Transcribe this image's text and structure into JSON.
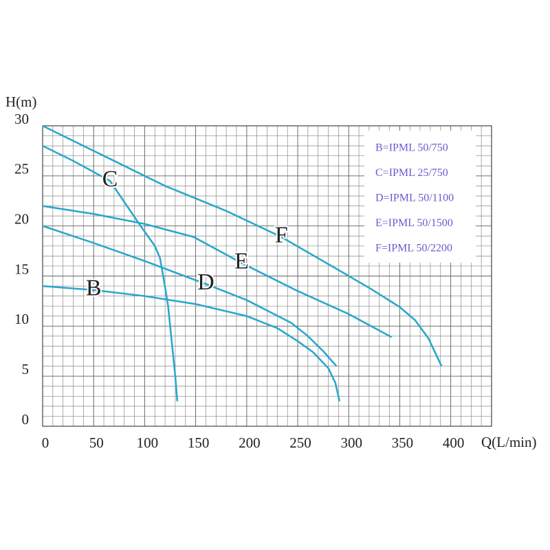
{
  "chart_data": {
    "type": "line",
    "y_label": "H(m)",
    "x_label": "Q(L/min)",
    "xlim": [
      0,
      440
    ],
    "xticks": [
      0,
      50,
      100,
      150,
      200,
      250,
      300,
      350,
      400
    ],
    "ylim": [
      0,
      30
    ],
    "yticks": [
      0,
      5,
      10,
      15,
      20,
      25,
      30
    ],
    "grid": true,
    "legend": [
      "B=IPML 50/750",
      "C=IPML 25/750",
      "D=IPML 50/1100",
      "E=IPML 50/1500",
      "F=IPML 50/2200"
    ],
    "legend_color": "#6a5acd",
    "series": [
      {
        "name": "B",
        "color": "#2aa8cc",
        "x": [
          0,
          50,
          100,
          150,
          200,
          230,
          250,
          265,
          280,
          287,
          291
        ],
        "values": [
          14,
          13.6,
          13,
          12.2,
          11,
          9.8,
          8.5,
          7.4,
          5.8,
          4.3,
          2.5
        ]
      },
      {
        "name": "C",
        "color": "#2aa8cc",
        "x": [
          0,
          30,
          66,
          96,
          110,
          115,
          119,
          123,
          127,
          130,
          132
        ],
        "values": [
          28,
          26.5,
          24.5,
          20,
          18,
          16.8,
          14.5,
          12,
          8,
          5,
          2.5
        ]
      },
      {
        "name": "D",
        "color": "#2aa8cc",
        "x": [
          0,
          50,
          100,
          160,
          200,
          244,
          260,
          275,
          288
        ],
        "values": [
          20,
          18.3,
          16.5,
          14.2,
          12.6,
          10.3,
          9,
          7.5,
          6
        ]
      },
      {
        "name": "E",
        "color": "#2aa8cc",
        "x": [
          0,
          50,
          100,
          148,
          195,
          248,
          300,
          342
        ],
        "values": [
          22,
          21.2,
          20.2,
          18.9,
          16.3,
          13.6,
          11.2,
          8.9
        ]
      },
      {
        "name": "F",
        "color": "#2aa8cc",
        "x": [
          0,
          60,
          120,
          180,
          234,
          290,
          322,
          350,
          365,
          378,
          391
        ],
        "values": [
          30,
          27,
          24,
          21.5,
          18.9,
          15.6,
          13.7,
          11.9,
          10.6,
          8.8,
          6
        ]
      }
    ]
  }
}
